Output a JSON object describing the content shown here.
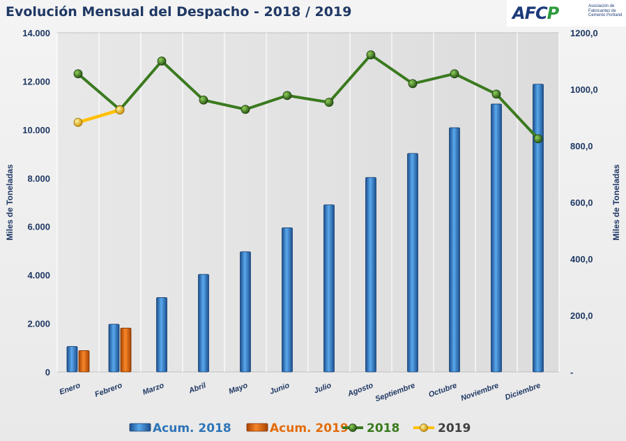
{
  "title": "Evolución Mensual del Despacho - 2018 / 2019",
  "logo": {
    "mark_left": "AFC",
    "mark_right": "P",
    "text": "Asociación de Fabricantes de Cemento Portland"
  },
  "chart_data": {
    "type": "bar",
    "categories": [
      "Enero",
      "Febrero",
      "Marzo",
      "Abril",
      "Mayo",
      "Junio",
      "Julio",
      "Agosto",
      "Septiembre",
      "Octubre",
      "Noviembre",
      "Diciembre"
    ],
    "ylabel": "Miles de Toneladas",
    "y2label": "Miles de Toneladas",
    "ylim": [
      0,
      14000
    ],
    "y2lim": [
      0,
      1200
    ],
    "yticks": [
      "0",
      "2.000",
      "4.000",
      "6.000",
      "8.000",
      "10.000",
      "12.000",
      "14.000"
    ],
    "y2ticks": [
      "-",
      "200,0",
      "400,0",
      "600,0",
      "800,0",
      "1000,0",
      "1200,0"
    ],
    "grid": true,
    "legend_position": "bottom",
    "series": [
      {
        "name": "Acum. 2018",
        "type": "bar",
        "axis": "left",
        "color": "#3b8fd8",
        "values": [
          1050,
          1970,
          3070,
          4030,
          4960,
          5950,
          6900,
          8030,
          9020,
          10080,
          11060,
          11880
        ]
      },
      {
        "name": "Acum. 2019",
        "type": "bar",
        "axis": "left",
        "color": "#e36c0a",
        "values": [
          880,
          1810,
          null,
          null,
          null,
          null,
          null,
          null,
          null,
          null,
          null,
          null
        ]
      },
      {
        "name": "2018",
        "type": "line",
        "axis": "right",
        "color": "#3a7a1e",
        "values": [
          1055,
          928,
          1100,
          962,
          929,
          978,
          954,
          1122,
          1020,
          1055,
          983,
          825
        ]
      },
      {
        "name": "2019",
        "type": "line",
        "axis": "right",
        "color": "#ffc000",
        "values": [
          883,
          927,
          null,
          null,
          null,
          null,
          null,
          null,
          null,
          null,
          null,
          null
        ]
      }
    ]
  }
}
